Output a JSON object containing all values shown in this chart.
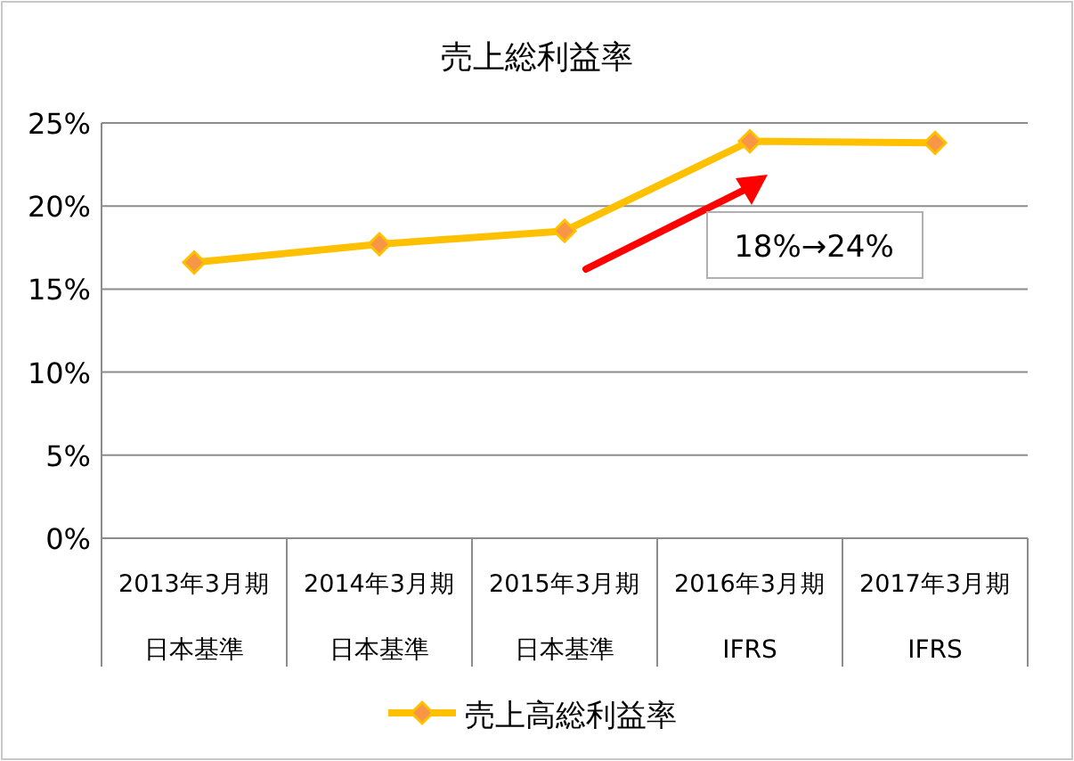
{
  "chart_data": {
    "type": "line",
    "title": "売上総利益率",
    "categories": [
      "2013年3月期日本基準",
      "2014年3月期日本基準",
      "2015年3月期日本基準",
      "2016年3月期 IFRS",
      "2017年3月期 IFRS"
    ],
    "series": [
      {
        "name": "売上高総利益率",
        "color": "#ffc000",
        "values": [
          16.6,
          17.7,
          18.5,
          23.9,
          23.8
        ]
      }
    ],
    "ylim": [
      0,
      25
    ],
    "yticks": [
      {
        "value": 0,
        "label": "0%"
      },
      {
        "value": 5,
        "label": "5%"
      },
      {
        "value": 10,
        "label": "10%"
      },
      {
        "value": 15,
        "label": "15%"
      },
      {
        "value": 20,
        "label": "20%"
      },
      {
        "value": 25,
        "label": "25%"
      }
    ],
    "annotations": [
      "18%→24%"
    ],
    "grid": "y",
    "legend": "bottom",
    "marker": "diamond",
    "line_style": "solid"
  }
}
